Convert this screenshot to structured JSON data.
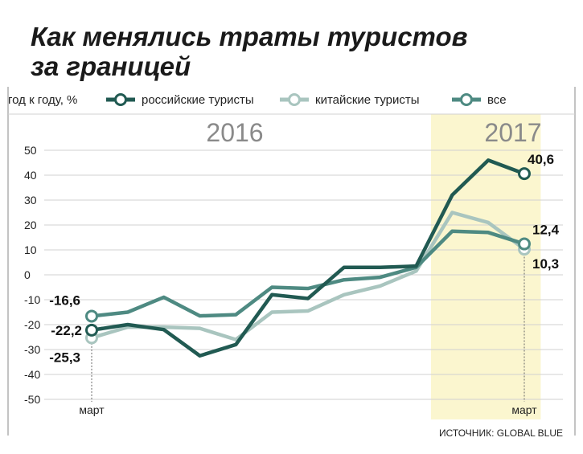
{
  "title_lines": [
    "Как менялись траты туристов",
    "за границей"
  ],
  "legend": {
    "unit_label": "год к году, %",
    "items": [
      {
        "label": "российские туристы",
        "color": "#215a52"
      },
      {
        "label": "китайские туристы",
        "color": "#a9c5bf"
      },
      {
        "label": "все",
        "color": "#4e8a82"
      }
    ]
  },
  "period_labels": {
    "left": "2016",
    "right": "2017"
  },
  "month_labels": {
    "start": "март",
    "end": "март"
  },
  "source": "ИСТОЧНИК: GLOBAL BLUE",
  "colors": {
    "russian": "#215a52",
    "chinese": "#a9c5bf",
    "all": "#4e8a82",
    "highlight": "#fbf6cf",
    "grid": "#d0d0d0",
    "frame": "#888888"
  },
  "chart_data": {
    "type": "line",
    "ylabel": "год к году, %",
    "ylim": [
      -55,
      52
    ],
    "yticks": [
      50,
      40,
      30,
      20,
      10,
      0,
      -10,
      -20,
      -30,
      -40,
      -50
    ],
    "x": [
      "2016-03",
      "2016-04",
      "2016-05",
      "2016-06",
      "2016-07",
      "2016-08",
      "2016-09",
      "2016-10",
      "2016-11",
      "2016-12",
      "2017-01",
      "2017-02",
      "2017-03"
    ],
    "highlight_range": [
      "2017-01",
      "2017-03"
    ],
    "series": [
      {
        "name": "российские туристы",
        "key": "russian",
        "values": [
          -22.2,
          -20,
          -22,
          -32.5,
          -28,
          -8,
          -9.5,
          3,
          3,
          3.5,
          32,
          46,
          40.6
        ],
        "end_label": "40,6",
        "start_label": "-22,2"
      },
      {
        "name": "китайские туристы",
        "key": "chinese",
        "values": [
          -25.3,
          -21,
          -21,
          -21.5,
          -26,
          -15,
          -14.5,
          -8,
          -4.5,
          1.5,
          25,
          21,
          10.3
        ],
        "end_label": "10,3",
        "start_label": "-25,3"
      },
      {
        "name": "все",
        "key": "all",
        "values": [
          -16.6,
          -15,
          -9,
          -16.5,
          -16,
          -5,
          -5.5,
          -2,
          -1,
          3,
          17.5,
          17,
          12.4
        ],
        "end_label": "12,4",
        "start_label": "-16,6"
      }
    ]
  }
}
